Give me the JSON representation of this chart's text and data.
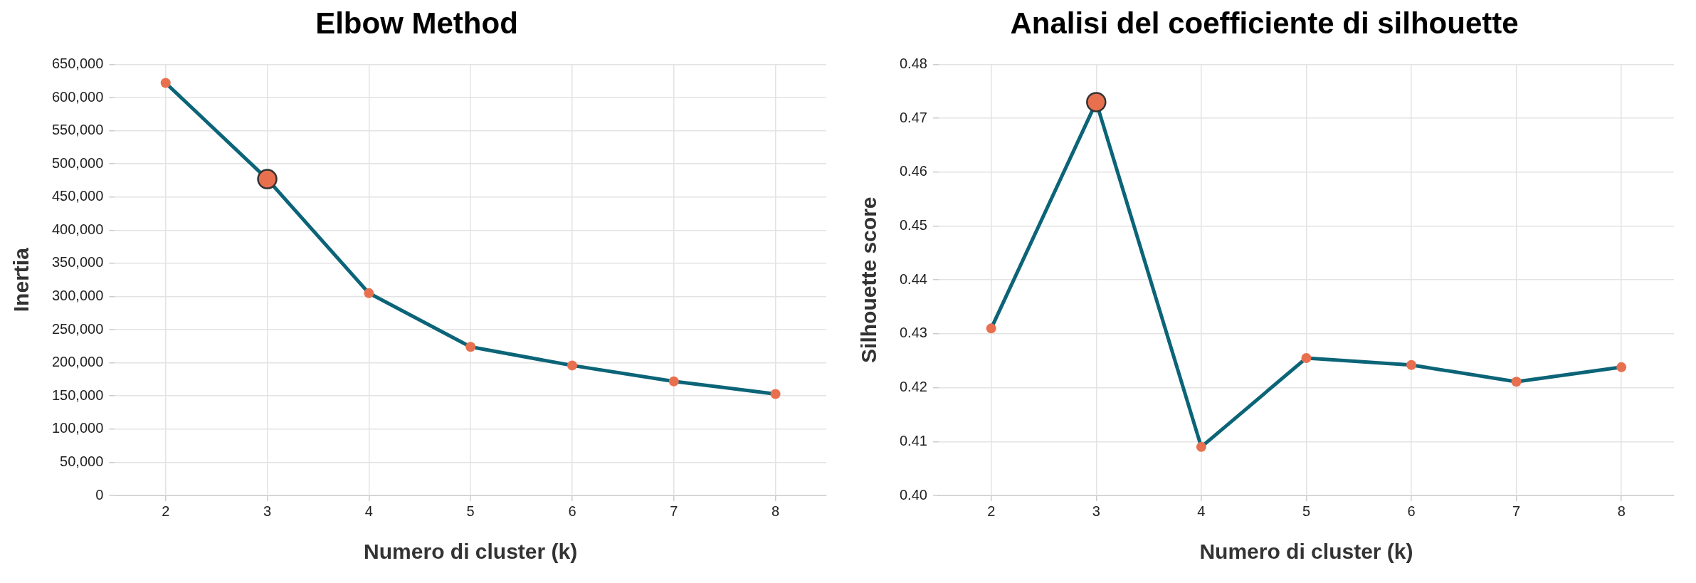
{
  "chart_data": [
    {
      "type": "line",
      "title": "Elbow Method",
      "xlabel": "Numero di cluster (k)",
      "ylabel": "Inertia",
      "x": [
        2,
        3,
        4,
        5,
        6,
        7,
        8
      ],
      "xlim": [
        1.5,
        8.5
      ],
      "xticks": [
        2,
        3,
        4,
        5,
        6,
        7,
        8
      ],
      "ylim": [
        0,
        650000
      ],
      "yticks": [
        0,
        {
          "value": 50000,
          "label": "50,000"
        },
        {
          "value": 100000,
          "label": "100,000"
        },
        {
          "value": 150000,
          "label": "150,000"
        },
        {
          "value": 200000,
          "label": "200,000"
        },
        {
          "value": 250000,
          "label": "250,000"
        },
        {
          "value": 300000,
          "label": "300,000"
        },
        {
          "value": 350000,
          "label": "350,000"
        },
        {
          "value": 400000,
          "label": "400,000"
        },
        {
          "value": 450000,
          "label": "450,000"
        },
        {
          "value": 500000,
          "label": "500,000"
        },
        {
          "value": 550000,
          "label": "550,000"
        },
        {
          "value": 600000,
          "label": "600,000"
        },
        {
          "value": 650000,
          "label": "650,000"
        }
      ],
      "grid": true,
      "legend": false,
      "marker": "circle",
      "line_style": "solid",
      "series": [
        {
          "color": "#0b6477",
          "colors": [
            "#e8704f",
            "#e8704f",
            "#e8704f",
            "#e8704f",
            "#e8704f",
            "#e8704f",
            "#e8704f"
          ],
          "values": [
            622000,
            477000,
            305000,
            224000,
            196000,
            172000,
            153000
          ]
        },
        {
          "type": "scatter",
          "color": "#e8704f",
          "x": [
            3
          ],
          "values": [
            477000
          ]
        }
      ]
    },
    {
      "type": "line",
      "title": "Analisi del coefficiente di silhouette",
      "xlabel": "Numero di cluster (k)",
      "ylabel": "Silhouette score",
      "x": [
        2,
        3,
        4,
        5,
        6,
        7,
        8
      ],
      "xlim": [
        1.5,
        8.5
      ],
      "xticks": [
        2,
        3,
        4,
        5,
        6,
        7,
        8
      ],
      "ylim": [
        0.4,
        0.48
      ],
      "yticks": [
        {
          "value": 0.4,
          "label": "0.40"
        },
        0.41,
        0.42,
        0.43,
        0.44,
        0.45,
        0.46,
        0.47,
        0.48
      ],
      "grid": true,
      "legend": false,
      "marker": "circle",
      "line_style": "solid",
      "series": [
        {
          "color": "#0b6477",
          "colors": [
            "#e8704f",
            "#e8704f",
            "#e8704f",
            "#e8704f",
            "#e8704f",
            "#e8704f",
            "#e8704f"
          ],
          "values": [
            0.431,
            0.473,
            0.409,
            0.4255,
            0.4242,
            0.4211,
            0.4238
          ]
        },
        {
          "type": "scatter",
          "color": "#e8704f",
          "x": [
            3
          ],
          "values": [
            0.473
          ]
        }
      ]
    }
  ]
}
